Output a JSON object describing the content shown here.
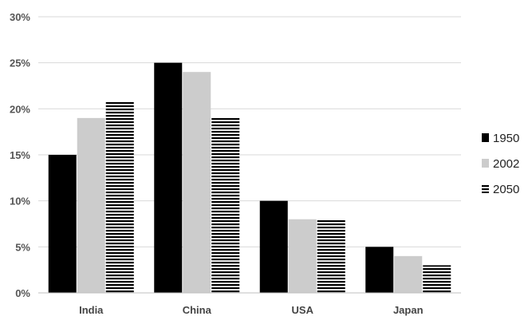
{
  "chart_data": {
    "type": "bar",
    "categories": [
      "India",
      "China",
      "USA",
      "Japan"
    ],
    "series": [
      {
        "name": "1950",
        "values": [
          15,
          25,
          10,
          5
        ],
        "color": "#000000",
        "pattern": "solid"
      },
      {
        "name": "2002",
        "values": [
          19,
          24,
          8,
          4
        ],
        "color": "#cccccc",
        "pattern": "solid"
      },
      {
        "name": "2050",
        "values": [
          20.8,
          19,
          8,
          3
        ],
        "color": "#000000",
        "pattern": "horizontal-stripes"
      }
    ],
    "y_ticks": [
      "0%",
      "5%",
      "10%",
      "15%",
      "20%",
      "25%",
      "30%"
    ],
    "ylim": [
      0,
      30
    ],
    "y_unit": "%",
    "title": "",
    "xlabel": "",
    "ylabel": "",
    "grid": true,
    "legend_position": "right"
  }
}
